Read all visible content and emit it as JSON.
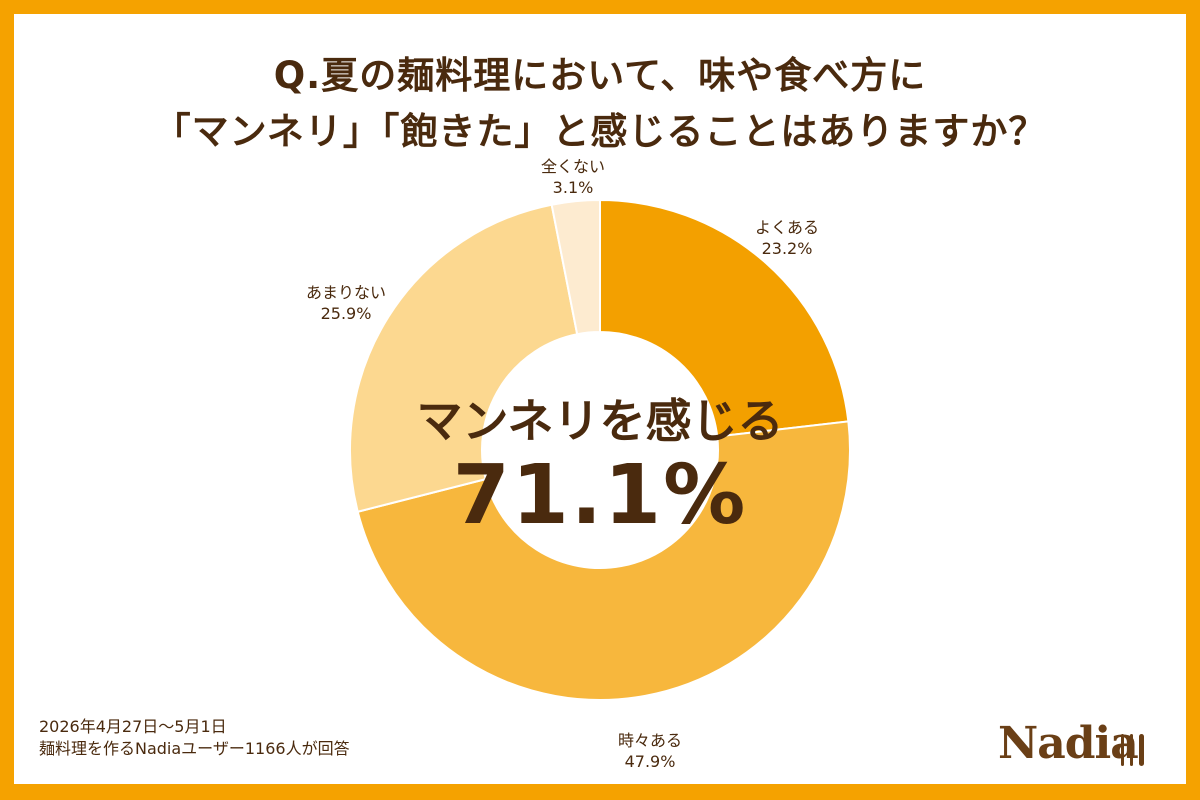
{
  "title": {
    "line1": "Q.夏の麺料理において、味や食べ方に",
    "line2": "「マンネリ」「飽きた」と感じることはありますか？"
  },
  "chart_data": {
    "type": "pie",
    "categories": [
      "よくある",
      "時々ある",
      "あまりない",
      "全くない"
    ],
    "values": [
      23.2,
      47.9,
      25.9,
      3.1
    ],
    "value_labels": [
      "23.2%",
      "47.9%",
      "25.9%",
      "3.1%"
    ],
    "colors": [
      "#f3a000",
      "#f7b73d",
      "#fcd890",
      "#fdebd0"
    ],
    "donut": true,
    "start": "12 o'clock, clockwise",
    "center_label": {
      "line1": "マンネリを感じる",
      "line2": "71.1%"
    }
  },
  "footnote": {
    "line1": "2026年4月27日〜5月1日",
    "line2": "麺料理を作るNadiaユーザー1166人が回答"
  },
  "logo": {
    "text": "Nadia",
    "icon": "fork-knife-icon"
  },
  "colors": {
    "border": "#f5a200",
    "text": "#4a2a0e",
    "logo": "#6a3f16"
  }
}
